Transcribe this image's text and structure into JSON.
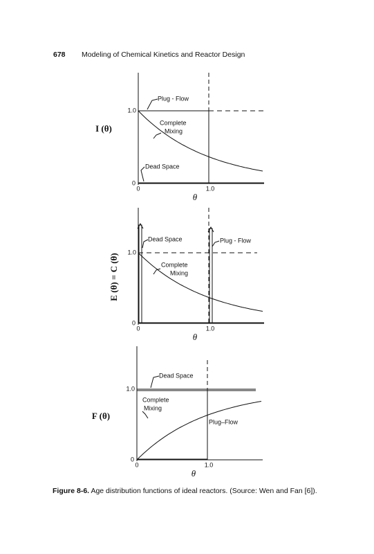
{
  "header": {
    "page_number": "678",
    "title": "Modeling of Chemical Kinetics and Reactor Design"
  },
  "figures": [
    {
      "y_label": "I (θ)",
      "y_ticks": [
        "1.0",
        "0"
      ],
      "x_ticks": [
        "0",
        "1.0"
      ],
      "x_label": "θ",
      "annotations": [
        "Plug - Flow",
        "Complete",
        "Mixing",
        "Dead  Space"
      ]
    },
    {
      "y_label": "E (θ) = C (θ)",
      "y_ticks": [
        "1.0",
        "0"
      ],
      "x_ticks": [
        "0",
        "1.0"
      ],
      "x_label": "θ",
      "annotations": [
        "Dead  Space",
        "Plug - Flow",
        "Complete",
        "Mixing"
      ]
    },
    {
      "y_label": "F (θ)",
      "y_ticks": [
        "1.0",
        "0"
      ],
      "x_ticks": [
        "0",
        "1.0"
      ],
      "x_label": "θ",
      "annotations": [
        "Dead  Space",
        "Complete",
        "Mixing",
        "Plug–Flow"
      ]
    }
  ],
  "caption": {
    "label": "Figure 8-6.",
    "text": "Age distribution functions of ideal reactors. (Source: Wen and Fan [6])."
  }
}
